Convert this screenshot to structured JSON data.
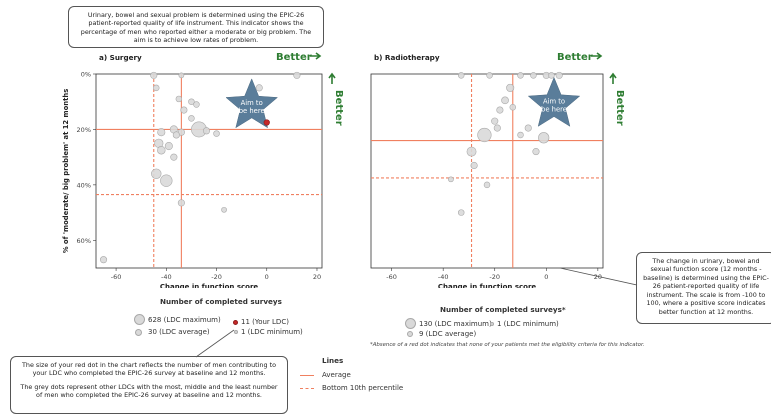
{
  "callouts": {
    "top": "Urinary, bowel and sexual problem is determined using the EPIC-26 patient-reported quality of life instrument. This indicator shows the percentage of men who reported either a moderate or big problem. The aim is to achieve low rates of problem.",
    "right": "The change in urinary, bowel and sexual function score (12 months - baseline) is determined using the EPIC-26 patient-reported quality of life instrument. The scale is from -100 to 100, where a positive score indicates better function at 12 months.",
    "bottom_p1": "The size of your red dot in the chart reflects the number of men contributing to your LDC who completed the EPIC-26 survey at baseline and 12 months.",
    "bottom_p2": "The grey dots represent other LDCs with the most, middle and the least number of men who completed the EPIC-26 survey at baseline and 12 months."
  },
  "legend_surgery": {
    "title": "Number of completed surveys",
    "max": "628 (LDC maximum)",
    "avg": "30 (LDC average)",
    "yours": "11 (Your LDC)",
    "min": "1 (LDC minimum)"
  },
  "legend_radio": {
    "title": "Number of completed surveys*",
    "max": "130 (LDC maximum)",
    "avg": "9 (LDC average)",
    "min": "1 (LDC minimum)"
  },
  "footnote": "*Absence of a red dot indicates that none of your patients met the eligibility criteria for this indicator.",
  "lines_legend": {
    "title": "Lines",
    "average": "Average",
    "bottom": "Bottom 10th percentile"
  },
  "colors": {
    "line": "#f08060",
    "better": "#2e7d32",
    "star": "#5a7d9a",
    "grey_dot": "#d9d9d9",
    "red_dot": "#c62828"
  },
  "chart_data": [
    {
      "type": "scatter",
      "title": "a) Surgery",
      "xlabel": "Change in function score\n(12 months-baseline)",
      "ylabel": "% of 'moderate/ big problem' at 12 months",
      "xlim": [
        -68,
        22
      ],
      "ylim": [
        0,
        70
      ],
      "y_inverted": true,
      "x_ticks": [
        "-60",
        "-40",
        "-20",
        "0",
        "20"
      ],
      "y_ticks": [
        "0%",
        "20%",
        "40%",
        "60%"
      ],
      "better_x": "Better",
      "better_y": "Better",
      "aim": "Aim to be here",
      "average": {
        "x": -34,
        "y": 20
      },
      "bottom_10th": {
        "x": -45,
        "y": 43.5
      },
      "your_ldc": {
        "x": 0,
        "y": 17.5,
        "n": 11
      },
      "points": [
        {
          "x": -45,
          "y": 0.5,
          "n": 3
        },
        {
          "x": -44,
          "y": 5,
          "n": 2
        },
        {
          "x": -34,
          "y": 0.5,
          "n": 1
        },
        {
          "x": -35,
          "y": 9,
          "n": 2
        },
        {
          "x": -30,
          "y": 10,
          "n": 2
        },
        {
          "x": -33,
          "y": 13,
          "n": 3
        },
        {
          "x": -30,
          "y": 16,
          "n": 2
        },
        {
          "x": -27,
          "y": 20,
          "n": 40
        },
        {
          "x": -34,
          "y": 21,
          "n": 3
        },
        {
          "x": -37,
          "y": 20,
          "n": 5
        },
        {
          "x": -36,
          "y": 22,
          "n": 3
        },
        {
          "x": -42,
          "y": 21,
          "n": 5
        },
        {
          "x": -43,
          "y": 25,
          "n": 8
        },
        {
          "x": -42,
          "y": 27.5,
          "n": 6
        },
        {
          "x": -39,
          "y": 26,
          "n": 5
        },
        {
          "x": -37,
          "y": 30,
          "n": 3
        },
        {
          "x": -44,
          "y": 36,
          "n": 12
        },
        {
          "x": -40,
          "y": 38.5,
          "n": 20
        },
        {
          "x": -34,
          "y": 46.5,
          "n": 3
        },
        {
          "x": -24,
          "y": 20.5,
          "n": 3
        },
        {
          "x": -20,
          "y": 21.5,
          "n": 2
        },
        {
          "x": -17,
          "y": 49,
          "n": 1
        },
        {
          "x": 12,
          "y": 0.5,
          "n": 3
        },
        {
          "x": -65,
          "y": 67,
          "n": 3
        },
        {
          "x": -3,
          "y": 5,
          "n": 3
        },
        {
          "x": -28,
          "y": 11,
          "n": 2
        }
      ]
    },
    {
      "type": "scatter",
      "title": "b) Radiotherapy",
      "xlabel": "Change in function score\n(12 months-baseline)",
      "ylabel": "",
      "xlim": [
        -68,
        22
      ],
      "ylim": [
        0,
        70
      ],
      "y_inverted": true,
      "x_ticks": [
        "-60",
        "-40",
        "-20",
        "0",
        "20"
      ],
      "better_x": "Better",
      "better_y": "Better",
      "aim": "Aim to be here",
      "average": {
        "x": -13,
        "y": 24
      },
      "bottom_10th": {
        "x": -29,
        "y": 37.5
      },
      "points": [
        {
          "x": -33,
          "y": 0.5,
          "n": 2
        },
        {
          "x": -22,
          "y": 0.5,
          "n": 2
        },
        {
          "x": -10,
          "y": 0.5,
          "n": 2
        },
        {
          "x": -5,
          "y": 0.5,
          "n": 2
        },
        {
          "x": 0,
          "y": 0.5,
          "n": 3
        },
        {
          "x": 5,
          "y": 0.5,
          "n": 3
        },
        {
          "x": 2,
          "y": 0.5,
          "n": 2
        },
        {
          "x": -14,
          "y": 5,
          "n": 5
        },
        {
          "x": -16,
          "y": 9.5,
          "n": 4
        },
        {
          "x": -18,
          "y": 13,
          "n": 3
        },
        {
          "x": -20,
          "y": 17,
          "n": 3
        },
        {
          "x": -19,
          "y": 19.5,
          "n": 3
        },
        {
          "x": -7,
          "y": 19.5,
          "n": 3
        },
        {
          "x": -24,
          "y": 22,
          "n": 30
        },
        {
          "x": -10,
          "y": 22,
          "n": 2
        },
        {
          "x": -1,
          "y": 23,
          "n": 15
        },
        {
          "x": -29,
          "y": 28,
          "n": 10
        },
        {
          "x": -28,
          "y": 33,
          "n": 3
        },
        {
          "x": -4,
          "y": 28,
          "n": 3
        },
        {
          "x": -23,
          "y": 40,
          "n": 2
        },
        {
          "x": -33,
          "y": 50,
          "n": 2
        },
        {
          "x": -37,
          "y": 38,
          "n": 1
        },
        {
          "x": -13,
          "y": 12,
          "n": 2
        }
      ]
    }
  ]
}
